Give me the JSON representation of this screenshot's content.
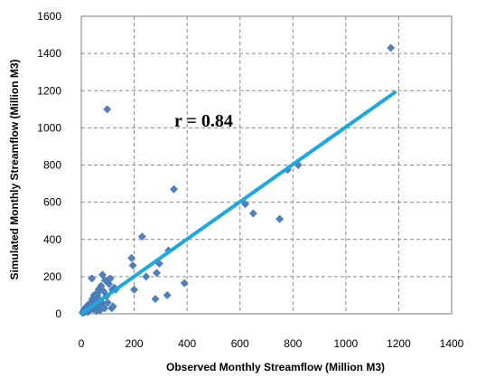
{
  "chart_data": {
    "type": "scatter",
    "xlabel": "Observed Monthly Streamflow (Million M3)",
    "ylabel": "Simulated Monthly Streamflow (Million M3)",
    "xlim": [
      0,
      1400
    ],
    "ylim": [
      0,
      1600
    ],
    "x_ticks": [
      "0",
      "200",
      "400",
      "600",
      "800",
      "1000",
      "1200",
      "1400"
    ],
    "y_ticks": [
      "0",
      "200",
      "400",
      "600",
      "800",
      "1000",
      "1200",
      "1400",
      "1600"
    ],
    "grid": true,
    "annotation": "r = 0.84",
    "colors": {
      "points": "#4f81bd",
      "trendline": "#1ea7e1",
      "grid": "#888888"
    },
    "points": [
      [
        5,
        5
      ],
      [
        8,
        12
      ],
      [
        10,
        20
      ],
      [
        12,
        8
      ],
      [
        15,
        30
      ],
      [
        18,
        15
      ],
      [
        20,
        40
      ],
      [
        22,
        25
      ],
      [
        25,
        10
      ],
      [
        28,
        50
      ],
      [
        30,
        35
      ],
      [
        32,
        20
      ],
      [
        35,
        60
      ],
      [
        38,
        45
      ],
      [
        40,
        30
      ],
      [
        42,
        80
      ],
      [
        45,
        25
      ],
      [
        48,
        100
      ],
      [
        50,
        70
      ],
      [
        52,
        40
      ],
      [
        55,
        90
      ],
      [
        58,
        15
      ],
      [
        60,
        110
      ],
      [
        62,
        55
      ],
      [
        65,
        130
      ],
      [
        68,
        30
      ],
      [
        70,
        75
      ],
      [
        72,
        20
      ],
      [
        75,
        150
      ],
      [
        78,
        60
      ],
      [
        80,
        210
      ],
      [
        82,
        40
      ],
      [
        85,
        120
      ],
      [
        88,
        30
      ],
      [
        90,
        180
      ],
      [
        95,
        95
      ],
      [
        98,
        1100
      ],
      [
        100,
        60
      ],
      [
        105,
        160
      ],
      [
        110,
        190
      ],
      [
        115,
        30
      ],
      [
        118,
        130
      ],
      [
        120,
        40
      ],
      [
        125,
        140
      ],
      [
        130,
        130
      ],
      [
        40,
        190
      ],
      [
        60,
        100
      ],
      [
        190,
        300
      ],
      [
        195,
        260
      ],
      [
        200,
        130
      ],
      [
        230,
        415
      ],
      [
        245,
        200
      ],
      [
        280,
        80
      ],
      [
        285,
        220
      ],
      [
        295,
        270
      ],
      [
        325,
        100
      ],
      [
        330,
        340
      ],
      [
        350,
        670
      ],
      [
        390,
        165
      ],
      [
        620,
        590
      ],
      [
        650,
        540
      ],
      [
        750,
        510
      ],
      [
        780,
        775
      ],
      [
        820,
        800
      ],
      [
        1170,
        1430
      ]
    ],
    "trendline": {
      "x": [
        0,
        1190
      ],
      "y": [
        0,
        1195
      ]
    }
  }
}
